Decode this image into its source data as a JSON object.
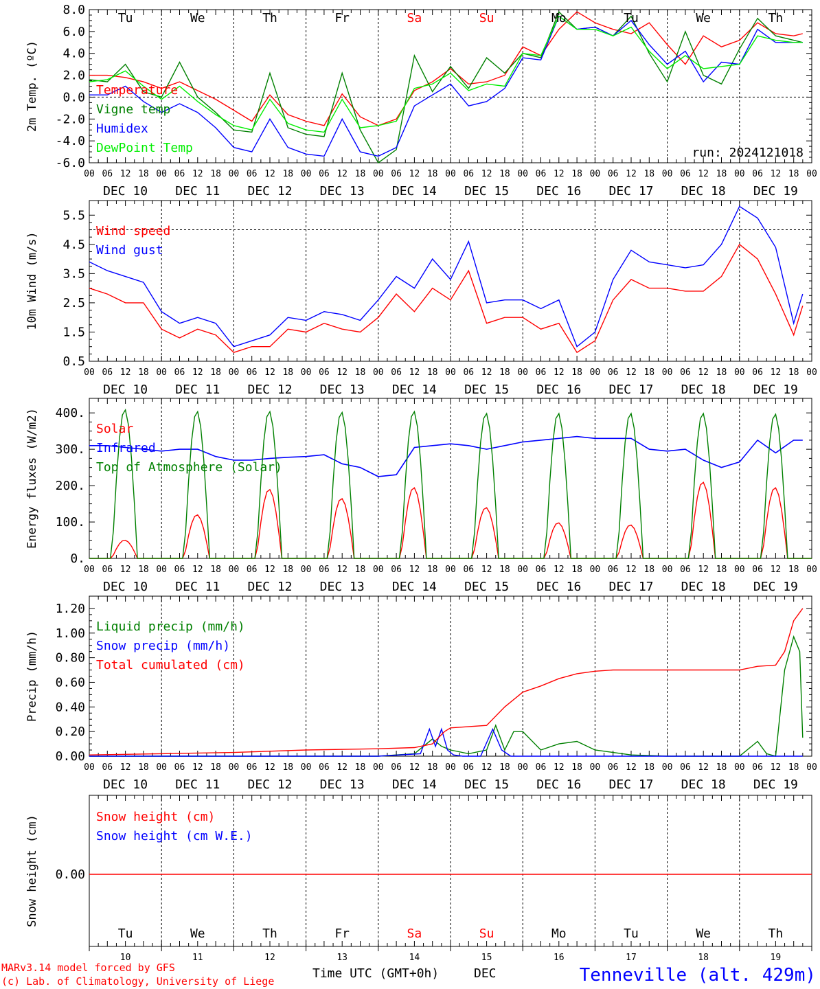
{
  "meta": {
    "run": "run: 2024121018",
    "credit_line1": "MARv3.14 model forced by GFS",
    "credit_line2": "(c) Lab. of Climatology, University of Liege",
    "location": "Tenneville (alt. 429m)",
    "x_title": "Time UTC (GMT+0h)",
    "month": "DEC"
  },
  "colors": {
    "red": "#ff0000",
    "green": "#008000",
    "blue": "#0000ff",
    "light_green": "#00ee00"
  },
  "time_axis": {
    "hour_ticks": [
      "00",
      "06",
      "12",
      "18"
    ],
    "dates": [
      "DEC 10",
      "DEC 11",
      "DEC 12",
      "DEC 13",
      "DEC 14",
      "DEC 15",
      "DEC 16",
      "DEC 17",
      "DEC 18",
      "DEC 19"
    ],
    "day_numbers": [
      "10",
      "11",
      "12",
      "13",
      "14",
      "15",
      "16",
      "17",
      "18",
      "19"
    ],
    "weekdays": [
      {
        "label": "Tu",
        "weekend": false
      },
      {
        "label": "We",
        "weekend": false
      },
      {
        "label": "Th",
        "weekend": false
      },
      {
        "label": "Fr",
        "weekend": false
      },
      {
        "label": "Sa",
        "weekend": true
      },
      {
        "label": "Su",
        "weekend": true
      },
      {
        "label": "Mo",
        "weekend": false
      },
      {
        "label": "Tu",
        "weekend": false
      },
      {
        "label": "We",
        "weekend": false
      },
      {
        "label": "Th",
        "weekend": false
      }
    ]
  },
  "chart_data": [
    {
      "type": "line",
      "ylabel": "2m Temp. (ºC)",
      "ylim": [
        -6,
        8
      ],
      "yticks": [
        "8.0",
        "6.0",
        "4.0",
        "2.0",
        "0.0",
        "-2.0",
        "-4.0",
        "-6.0"
      ],
      "ytick_values": [
        8,
        6,
        4,
        2,
        0,
        -2,
        -4,
        -6
      ],
      "ref_line": 0,
      "x_unit": "hours since DEC 10 00 UTC",
      "series": [
        {
          "name": "Temperature",
          "color": "#ff0000",
          "x": [
            0,
            6,
            12,
            18,
            24,
            30,
            36,
            42,
            48,
            54,
            60,
            66,
            72,
            78,
            84,
            90,
            96,
            102,
            108,
            114,
            120,
            126,
            132,
            138,
            144,
            150,
            156,
            162,
            168,
            174,
            180,
            186,
            192,
            198,
            204,
            210,
            216,
            222,
            228,
            234,
            237
          ],
          "y": [
            2.0,
            2.0,
            1.8,
            1.4,
            0.8,
            1.4,
            0.6,
            -0.2,
            -1.2,
            -2.2,
            0.2,
            -1.6,
            -2.2,
            -2.6,
            0.3,
            -1.8,
            -2.6,
            -2.0,
            0.6,
            1.4,
            2.6,
            1.2,
            1.4,
            2.0,
            4.6,
            3.8,
            6.2,
            7.8,
            6.8,
            6.2,
            5.8,
            6.8,
            4.8,
            3.0,
            5.6,
            4.6,
            5.2,
            6.8,
            5.8,
            5.6,
            5.8
          ]
        },
        {
          "name": "Vigne temp",
          "color": "#008000",
          "x": [
            0,
            6,
            12,
            18,
            24,
            30,
            36,
            42,
            48,
            54,
            60,
            66,
            72,
            78,
            84,
            90,
            96,
            102,
            108,
            114,
            120,
            126,
            132,
            138,
            144,
            150,
            156,
            162,
            168,
            174,
            180,
            186,
            192,
            198,
            204,
            210,
            216,
            222,
            228,
            234,
            237
          ],
          "y": [
            1.6,
            1.4,
            3.0,
            0.5,
            0.0,
            3.2,
            0.0,
            -1.4,
            -3.0,
            -3.2,
            2.2,
            -2.8,
            -3.4,
            -3.6,
            2.2,
            -3.0,
            -6.0,
            -4.8,
            3.8,
            0.5,
            2.8,
            0.8,
            3.6,
            2.2,
            4.0,
            3.6,
            7.8,
            6.2,
            6.4,
            5.6,
            7.4,
            4.0,
            1.4,
            6.0,
            2.0,
            1.2,
            4.4,
            7.2,
            5.6,
            5.2,
            5.0
          ]
        },
        {
          "name": "Humidex",
          "color": "#0000ff",
          "x": [
            0,
            6,
            12,
            18,
            24,
            30,
            36,
            42,
            48,
            54,
            60,
            66,
            72,
            78,
            84,
            90,
            96,
            102,
            108,
            114,
            120,
            126,
            132,
            138,
            144,
            150,
            156,
            162,
            168,
            174,
            180,
            186,
            192,
            198,
            204,
            210,
            216,
            222,
            228,
            234,
            237
          ],
          "y": [
            0.2,
            0.2,
            1.0,
            -0.4,
            -1.4,
            -0.6,
            -1.4,
            -2.8,
            -4.6,
            -5.0,
            -2.0,
            -4.6,
            -5.2,
            -5.4,
            -2.0,
            -5.0,
            -5.4,
            -4.6,
            -0.8,
            0.2,
            1.2,
            -0.8,
            -0.4,
            0.8,
            3.6,
            3.4,
            7.4,
            6.2,
            6.4,
            5.6,
            7.0,
            4.8,
            3.0,
            4.2,
            1.4,
            3.2,
            3.0,
            6.2,
            5.0,
            5.0,
            5.0
          ]
        },
        {
          "name": "DewPoint Temp",
          "color": "#00ee00",
          "x": [
            0,
            6,
            12,
            18,
            24,
            30,
            36,
            42,
            48,
            54,
            60,
            66,
            72,
            78,
            84,
            90,
            96,
            102,
            108,
            114,
            120,
            126,
            132,
            138,
            144,
            150,
            156,
            162,
            168,
            174,
            180,
            186,
            192,
            198,
            204,
            210,
            216,
            222,
            228,
            234,
            237
          ],
          "y": [
            1.4,
            1.6,
            2.4,
            1.0,
            -0.2,
            1.0,
            -0.4,
            -1.6,
            -2.6,
            -3.0,
            -0.2,
            -2.4,
            -3.0,
            -3.2,
            -0.2,
            -2.8,
            -2.6,
            -2.2,
            0.8,
            1.2,
            2.2,
            0.6,
            1.2,
            1.0,
            4.0,
            3.8,
            7.4,
            6.2,
            6.2,
            5.6,
            6.4,
            4.2,
            2.6,
            3.8,
            2.6,
            2.8,
            3.0,
            5.6,
            5.2,
            5.0,
            5.0
          ]
        }
      ]
    },
    {
      "type": "line",
      "ylabel": "10m Wind (m/s)",
      "ylim": [
        0.5,
        6
      ],
      "yticks": [
        "5.5",
        "4.5",
        "3.5",
        "2.5",
        "1.5",
        "0.5"
      ],
      "ytick_values": [
        5.5,
        4.5,
        3.5,
        2.5,
        1.5,
        0.5
      ],
      "ref_line": 5,
      "x_unit": "hours since DEC 10 00 UTC",
      "series": [
        {
          "name": "Wind speed",
          "color": "#ff0000",
          "x": [
            0,
            6,
            12,
            18,
            24,
            30,
            36,
            42,
            48,
            54,
            60,
            66,
            72,
            78,
            84,
            90,
            96,
            102,
            108,
            114,
            120,
            126,
            132,
            138,
            144,
            150,
            156,
            162,
            168,
            174,
            180,
            186,
            192,
            198,
            204,
            210,
            216,
            222,
            228,
            234,
            237
          ],
          "y": [
            3.0,
            2.8,
            2.5,
            2.5,
            1.6,
            1.3,
            1.6,
            1.4,
            0.8,
            1.0,
            1.0,
            1.6,
            1.5,
            1.8,
            1.6,
            1.5,
            2.0,
            2.8,
            2.2,
            3.0,
            2.6,
            3.6,
            1.8,
            2.0,
            2.0,
            1.6,
            1.8,
            0.8,
            1.2,
            2.6,
            3.3,
            3.0,
            3.0,
            2.9,
            2.9,
            3.4,
            4.5,
            4.0,
            2.8,
            1.4,
            2.4
          ]
        },
        {
          "name": "Wind gust",
          "color": "#0000ff",
          "x": [
            0,
            6,
            12,
            18,
            24,
            30,
            36,
            42,
            48,
            54,
            60,
            66,
            72,
            78,
            84,
            90,
            96,
            102,
            108,
            114,
            120,
            126,
            132,
            138,
            144,
            150,
            156,
            162,
            168,
            174,
            180,
            186,
            192,
            198,
            204,
            210,
            216,
            222,
            228,
            234,
            237
          ],
          "y": [
            3.9,
            3.6,
            3.4,
            3.2,
            2.2,
            1.8,
            2.0,
            1.8,
            1.0,
            1.2,
            1.4,
            2.0,
            1.9,
            2.2,
            2.1,
            1.9,
            2.6,
            3.4,
            3.0,
            4.0,
            3.3,
            4.6,
            2.5,
            2.6,
            2.6,
            2.3,
            2.6,
            1.0,
            1.5,
            3.3,
            4.3,
            3.9,
            3.8,
            3.7,
            3.8,
            4.5,
            5.8,
            5.4,
            4.4,
            1.8,
            2.8
          ]
        }
      ]
    },
    {
      "type": "line",
      "ylabel": "Energy fluxes (W/m2)",
      "ylim": [
        0,
        440
      ],
      "yticks": [
        "400.",
        "300.",
        "200.",
        "100.",
        "0."
      ],
      "ytick_values": [
        400,
        300,
        200,
        100,
        0
      ],
      "x_unit": "hours since DEC 10 00 UTC",
      "series": [
        {
          "name": "Solar",
          "color": "#ff0000",
          "diurnal": true,
          "daily_peak": [
            50,
            120,
            190,
            165,
            195,
            140,
            98,
            92,
            210,
            195
          ]
        },
        {
          "name": "Infrared",
          "color": "#0000ff",
          "x": [
            0,
            6,
            12,
            18,
            24,
            30,
            36,
            42,
            48,
            54,
            60,
            66,
            72,
            78,
            84,
            90,
            96,
            102,
            108,
            114,
            120,
            126,
            132,
            138,
            144,
            150,
            156,
            162,
            168,
            174,
            180,
            186,
            192,
            198,
            204,
            210,
            216,
            222,
            228,
            234,
            237
          ],
          "y": [
            310,
            310,
            305,
            300,
            295,
            300,
            300,
            280,
            270,
            270,
            275,
            278,
            280,
            285,
            260,
            250,
            225,
            230,
            305,
            310,
            315,
            310,
            300,
            310,
            320,
            325,
            330,
            335,
            330,
            330,
            330,
            300,
            295,
            300,
            270,
            250,
            265,
            325,
            290,
            325,
            325
          ]
        },
        {
          "name": "Top of Atmosphere (Solar)",
          "color": "#008000",
          "diurnal": true,
          "daily_peak": [
            410,
            405,
            405,
            403,
            405,
            400,
            400,
            400,
            400,
            398
          ]
        }
      ]
    },
    {
      "type": "line",
      "ylabel": "Precip (mm/h)",
      "ylim": [
        0,
        1.3
      ],
      "yticks": [
        "1.20",
        "1.00",
        "0.80",
        "0.60",
        "0.40",
        "0.20",
        "0.00"
      ],
      "ytick_values": [
        1.2,
        1.0,
        0.8,
        0.6,
        0.4,
        0.2,
        0.0
      ],
      "x_unit": "hours since DEC 10 00 UTC",
      "series": [
        {
          "name": "Liquid precip (mm/h)",
          "color": "#008000",
          "x": [
            0,
            24,
            48,
            72,
            96,
            108,
            114,
            117,
            120,
            126,
            132,
            135,
            138,
            141,
            144,
            150,
            156,
            162,
            168,
            174,
            180,
            192,
            204,
            216,
            222,
            225,
            228,
            231,
            234,
            236,
            237
          ],
          "y": [
            0,
            0,
            0,
            0,
            0,
            0.02,
            0.14,
            0.08,
            0.05,
            0.02,
            0.05,
            0.25,
            0.05,
            0.2,
            0.2,
            0.05,
            0.1,
            0.12,
            0.05,
            0.03,
            0.01,
            0,
            0,
            0,
            0.12,
            0.02,
            0,
            0.7,
            0.97,
            0.85,
            0.15
          ]
        },
        {
          "name": "Snow precip (mm/h)",
          "color": "#0000ff",
          "x": [
            0,
            24,
            48,
            72,
            96,
            110,
            113,
            115,
            117,
            119,
            121,
            124,
            130,
            134,
            137,
            140,
            144,
            237
          ],
          "y": [
            0,
            0,
            0,
            0,
            0,
            0.02,
            0.22,
            0.08,
            0.22,
            0.05,
            0.01,
            0,
            0,
            0.22,
            0.05,
            0,
            0,
            0
          ]
        },
        {
          "name": "Total cumulated (cm)",
          "color": "#ff0000",
          "x": [
            0,
            24,
            48,
            72,
            96,
            108,
            114,
            118,
            120,
            132,
            138,
            144,
            150,
            156,
            162,
            168,
            174,
            180,
            192,
            204,
            216,
            222,
            228,
            231,
            234,
            237
          ],
          "y": [
            0.01,
            0.02,
            0.03,
            0.05,
            0.06,
            0.07,
            0.1,
            0.2,
            0.23,
            0.25,
            0.4,
            0.52,
            0.57,
            0.63,
            0.67,
            0.69,
            0.7,
            0.7,
            0.7,
            0.7,
            0.7,
            0.73,
            0.74,
            0.85,
            1.1,
            1.2
          ]
        }
      ]
    },
    {
      "type": "line",
      "ylabel": "Snow height (cm)",
      "yticks": [
        "0.00"
      ],
      "ytick_values": [
        0
      ],
      "x_unit": "hours since DEC 10 00 UTC",
      "series": [
        {
          "name": "Snow height (cm)",
          "color": "#ff0000",
          "x": [
            0,
            240
          ],
          "y": [
            0,
            0
          ]
        },
        {
          "name": "Snow height (cm W.E.)",
          "color": "#0000ff",
          "x": [
            0,
            240
          ],
          "y": [
            0,
            0
          ]
        }
      ]
    }
  ]
}
